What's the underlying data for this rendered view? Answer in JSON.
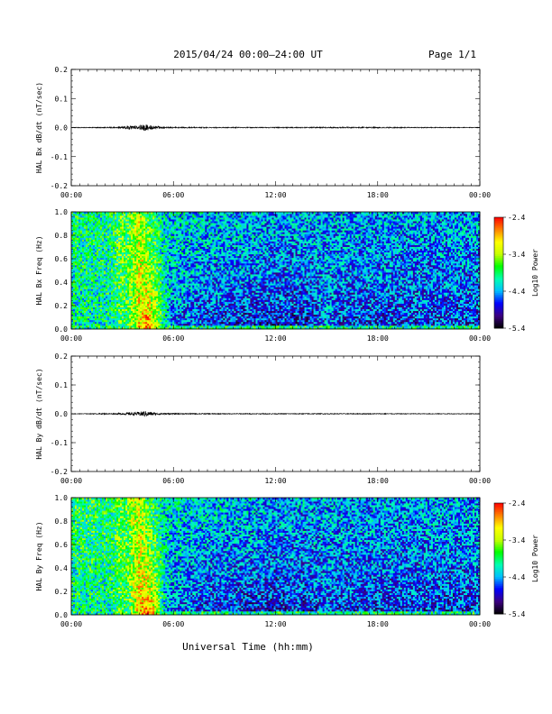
{
  "header": {
    "title": "2015/04/24  00:00–24:00 UT",
    "page": "Page 1/1"
  },
  "xaxis_label": "Universal Time (hh:mm)",
  "time_ticks": [
    "00:00",
    "06:00",
    "12:00",
    "18:00",
    "00:00"
  ],
  "colorbar_tick_labels": [
    "-2.4",
    "-3.4",
    "-4.4",
    "-5.4"
  ],
  "colorbar_label": "Log10 Power",
  "colormap": [
    "#000000",
    "#3c0080",
    "#0000ff",
    "#00bfff",
    "#00ffb0",
    "#00ff00",
    "#c8ff00",
    "#ffff00",
    "#ff8000",
    "#ff0000"
  ],
  "chart_data": [
    {
      "type": "line",
      "panel": "bx-timeseries",
      "ylabel": "HAL Bx dB/dt (nT/sec)",
      "ylim": [
        -0.2,
        0.2
      ],
      "ytick_labels": [
        "0.2",
        "0.1",
        "0.0",
        "-0.1",
        "-0.2"
      ],
      "xlim_hours": [
        0,
        24
      ],
      "envelope": {
        "x_hours": [
          0,
          2.5,
          3.0,
          3.5,
          4.0,
          4.3,
          4.6,
          5.0,
          5.4,
          6.0,
          9.0,
          12.0,
          15.0,
          18.0,
          20.0,
          24.0
        ],
        "amplitude": [
          0.001,
          0.002,
          0.004,
          0.006,
          0.008,
          0.012,
          0.008,
          0.005,
          0.003,
          0.002,
          0.0015,
          0.0015,
          0.002,
          0.002,
          0.0015,
          0.001
        ]
      }
    },
    {
      "type": "heatmap",
      "panel": "bx-spectrogram",
      "ylabel": "HAL Bx Freq (Hz)",
      "ylim": [
        0,
        1.0
      ],
      "ytick_labels": [
        "1.0",
        "0.8",
        "0.6",
        "0.4",
        "0.2",
        "0.0"
      ],
      "xlim_hours": [
        0,
        24
      ],
      "zlim": [
        -5.4,
        -2.4
      ],
      "x_hours": [
        0,
        1,
        2,
        2.5,
        2.9,
        3.2,
        3.5,
        4.0,
        4.5,
        5.0,
        5.5,
        6.0,
        8,
        10,
        12,
        14,
        15,
        16,
        18,
        20,
        22,
        24
      ],
      "low_freq_log10_power": [
        -4.1,
        -4.1,
        -4.1,
        -4.0,
        -3.8,
        -3.9,
        -3.6,
        -3.0,
        -2.6,
        -3.2,
        -4.2,
        -4.6,
        -4.8,
        -4.9,
        -4.9,
        -4.9,
        -4.5,
        -4.8,
        -4.8,
        -4.8,
        -4.8,
        -4.8
      ],
      "high_freq_log10_power": [
        -4.0,
        -4.0,
        -4.0,
        -4.0,
        -3.6,
        -3.8,
        -3.6,
        -3.3,
        -3.8,
        -4.0,
        -4.2,
        -4.2,
        -4.3,
        -4.3,
        -4.4,
        -4.4,
        -4.4,
        -4.4,
        -4.4,
        -4.4,
        -4.4,
        -4.4
      ]
    },
    {
      "type": "line",
      "panel": "by-timeseries",
      "ylabel": "HAL By dB/dt (nT/sec)",
      "ylim": [
        -0.2,
        0.2
      ],
      "ytick_labels": [
        "0.2",
        "0.1",
        "0.0",
        "-0.1",
        "-0.2"
      ],
      "xlim_hours": [
        0,
        24
      ],
      "envelope": {
        "x_hours": [
          0,
          2.5,
          3.0,
          3.5,
          4.0,
          4.3,
          4.6,
          5.0,
          5.4,
          6.0,
          9.0,
          12.0,
          15.0,
          18.0,
          20.0,
          24.0
        ],
        "amplitude": [
          0.001,
          0.002,
          0.003,
          0.005,
          0.007,
          0.01,
          0.007,
          0.004,
          0.003,
          0.002,
          0.0015,
          0.0015,
          0.0015,
          0.0015,
          0.0012,
          0.001
        ]
      }
    },
    {
      "type": "heatmap",
      "panel": "by-spectrogram",
      "ylabel": "HAL By Freq (Hz)",
      "ylim": [
        0,
        1.0
      ],
      "ytick_labels": [
        "1.0",
        "0.8",
        "0.6",
        "0.4",
        "0.2",
        "0.0"
      ],
      "xlim_hours": [
        0,
        24
      ],
      "zlim": [
        -5.4,
        -2.4
      ],
      "x_hours": [
        0,
        1,
        2,
        2.5,
        2.9,
        3.2,
        3.5,
        4.0,
        4.5,
        5.0,
        5.5,
        6.0,
        8,
        10,
        12,
        14,
        15,
        16,
        18,
        20,
        22,
        24
      ],
      "low_freq_log10_power": [
        -4.1,
        -4.1,
        -4.1,
        -4.0,
        -3.8,
        -3.9,
        -3.6,
        -3.0,
        -2.6,
        -3.2,
        -4.2,
        -4.6,
        -4.8,
        -4.9,
        -4.9,
        -4.9,
        -4.6,
        -4.8,
        -4.8,
        -4.8,
        -4.8,
        -4.8
      ],
      "high_freq_log10_power": [
        -3.9,
        -3.9,
        -3.9,
        -3.9,
        -3.6,
        -3.8,
        -3.5,
        -3.3,
        -3.8,
        -4.0,
        -4.2,
        -4.2,
        -4.3,
        -4.3,
        -4.4,
        -4.4,
        -4.4,
        -4.4,
        -4.4,
        -4.4,
        -4.4,
        -4.4
      ]
    }
  ]
}
